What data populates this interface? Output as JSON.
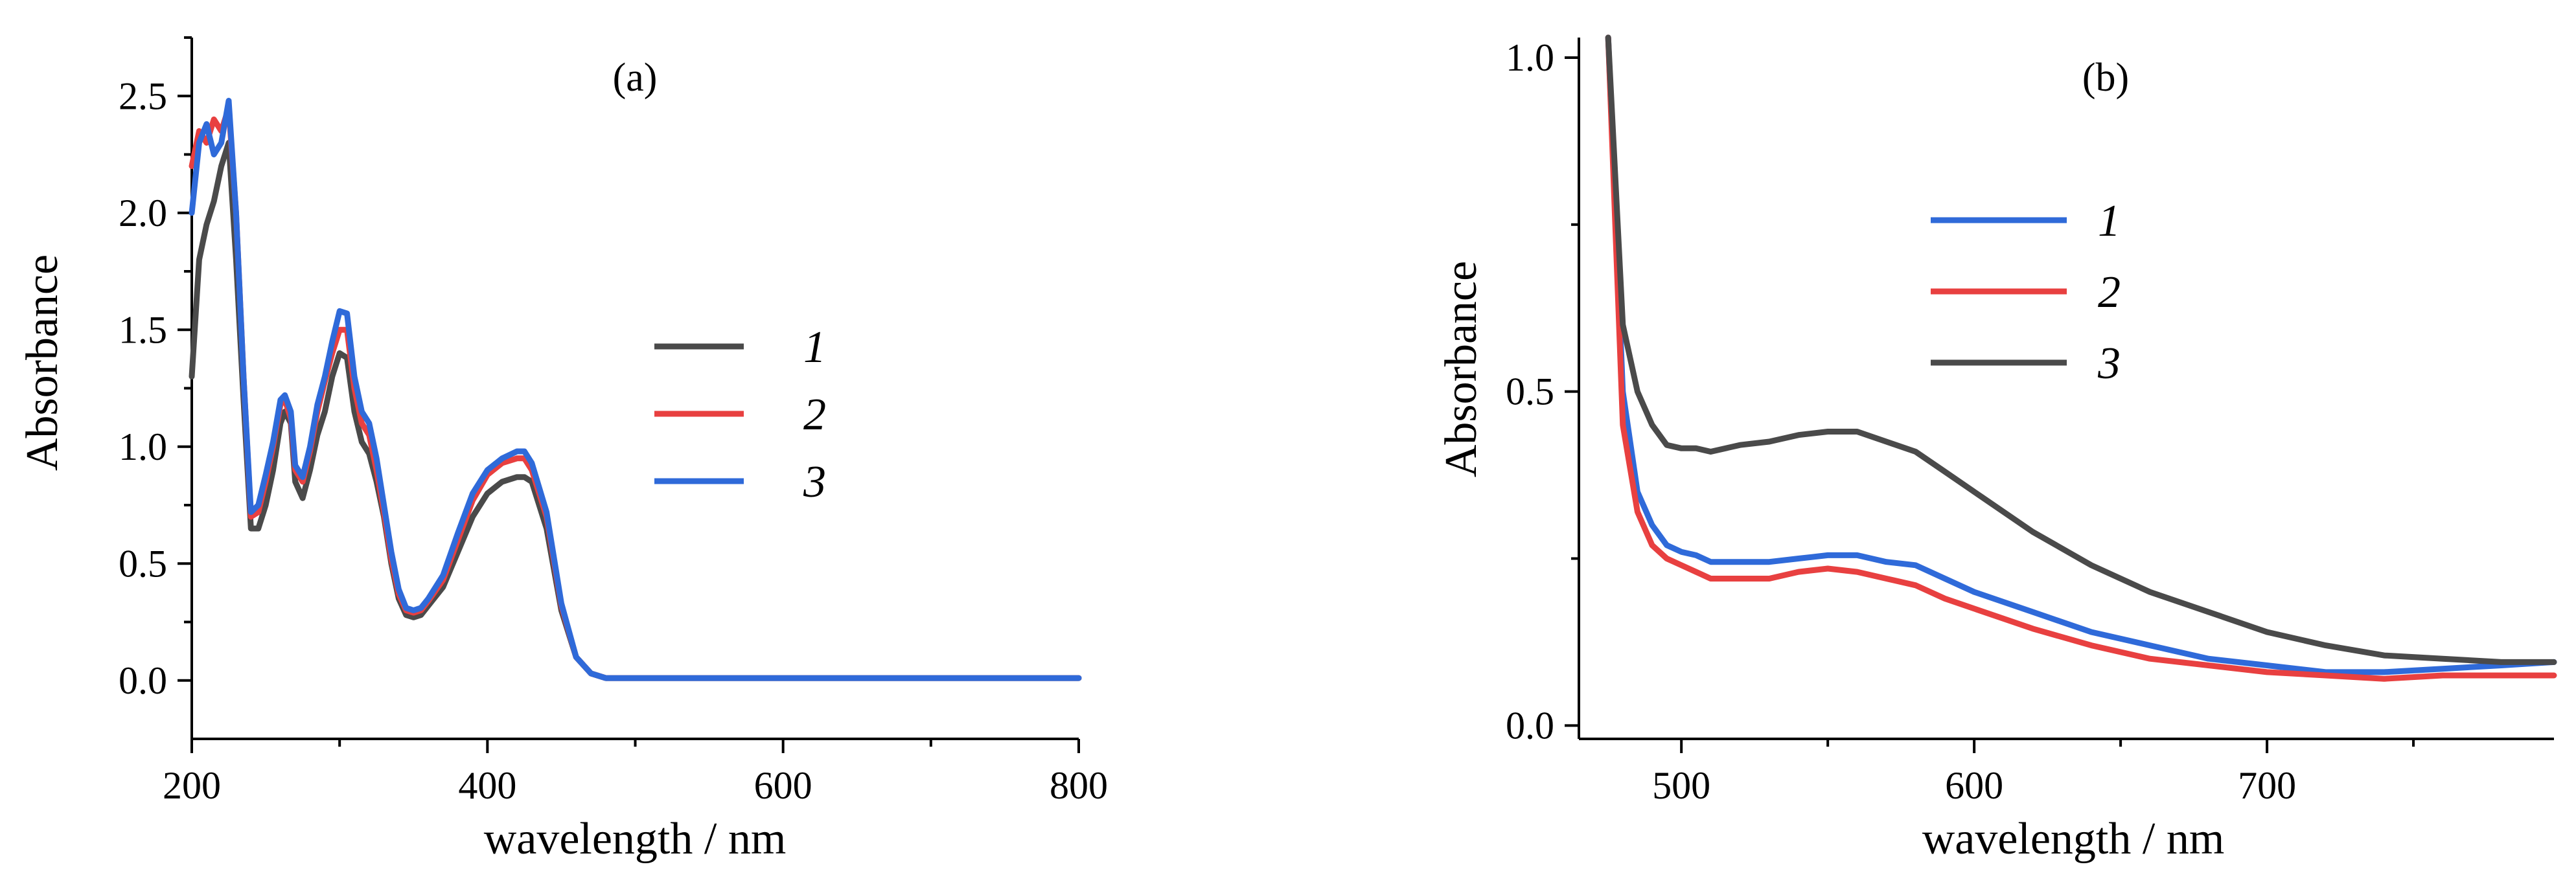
{
  "chart_data": [
    {
      "type": "line",
      "panel_label": "(a)",
      "xlabel": "wavelength / nm",
      "ylabel": "Absorbance",
      "xlim": [
        200,
        800
      ],
      "ylim": [
        -0.25,
        2.75
      ],
      "xticks": [
        200,
        400,
        600,
        800
      ],
      "xtick_labels": [
        "200",
        "400",
        "600",
        "800"
      ],
      "yticks": [
        0.0,
        0.5,
        1.0,
        1.5,
        2.0,
        2.5
      ],
      "ytick_labels": [
        "0.0",
        "0.5",
        "1.0",
        "1.5",
        "2.0",
        "2.5"
      ],
      "legend": [
        "1",
        "2",
        "3"
      ],
      "legend_position": "center-right",
      "series": [
        {
          "name": "1",
          "color": "#4a4a4a",
          "x": [
            200,
            205,
            210,
            215,
            220,
            225,
            230,
            235,
            240,
            245,
            250,
            255,
            260,
            263,
            267,
            270,
            275,
            280,
            285,
            290,
            295,
            300,
            305,
            310,
            315,
            320,
            325,
            330,
            335,
            340,
            345,
            350,
            355,
            360,
            370,
            380,
            390,
            400,
            410,
            420,
            425,
            430,
            440,
            450,
            460,
            470,
            480,
            490,
            500,
            550,
            600,
            650,
            700,
            750,
            800
          ],
          "y": [
            1.3,
            1.8,
            1.95,
            2.05,
            2.2,
            2.3,
            1.8,
            1.2,
            0.65,
            0.65,
            0.75,
            0.9,
            1.1,
            1.15,
            1.1,
            0.85,
            0.78,
            0.9,
            1.05,
            1.15,
            1.3,
            1.4,
            1.38,
            1.15,
            1.02,
            0.97,
            0.85,
            0.7,
            0.5,
            0.35,
            0.28,
            0.27,
            0.28,
            0.32,
            0.4,
            0.55,
            0.7,
            0.8,
            0.85,
            0.87,
            0.87,
            0.85,
            0.65,
            0.3,
            0.1,
            0.03,
            0.01,
            0.01,
            0.01,
            0.01,
            0.01,
            0.01,
            0.01,
            0.01,
            0.01
          ]
        },
        {
          "name": "2",
          "color": "#e84040",
          "x": [
            200,
            205,
            210,
            215,
            220,
            225,
            230,
            235,
            240,
            245,
            250,
            255,
            260,
            263,
            267,
            270,
            275,
            280,
            285,
            290,
            295,
            300,
            305,
            310,
            315,
            320,
            325,
            330,
            335,
            340,
            345,
            350,
            355,
            360,
            370,
            380,
            390,
            400,
            410,
            420,
            425,
            430,
            440,
            450,
            460,
            470,
            480,
            490,
            500,
            550,
            600,
            650,
            700,
            750,
            800
          ],
          "y": [
            2.2,
            2.35,
            2.3,
            2.4,
            2.35,
            2.45,
            2.0,
            1.3,
            0.7,
            0.72,
            0.85,
            1.0,
            1.18,
            1.2,
            1.12,
            0.9,
            0.85,
            0.98,
            1.15,
            1.28,
            1.4,
            1.5,
            1.5,
            1.25,
            1.1,
            1.05,
            0.9,
            0.72,
            0.52,
            0.37,
            0.3,
            0.29,
            0.3,
            0.34,
            0.43,
            0.6,
            0.77,
            0.88,
            0.93,
            0.95,
            0.95,
            0.9,
            0.7,
            0.32,
            0.1,
            0.03,
            0.01,
            0.01,
            0.01,
            0.01,
            0.01,
            0.01,
            0.01,
            0.01,
            0.01
          ]
        },
        {
          "name": "3",
          "color": "#2f6ad9",
          "x": [
            200,
            205,
            210,
            215,
            220,
            225,
            230,
            235,
            240,
            245,
            250,
            255,
            260,
            263,
            267,
            270,
            275,
            280,
            285,
            290,
            295,
            300,
            305,
            310,
            315,
            320,
            325,
            330,
            335,
            340,
            345,
            350,
            355,
            360,
            370,
            380,
            390,
            400,
            410,
            420,
            425,
            430,
            440,
            450,
            460,
            470,
            480,
            490,
            500,
            550,
            600,
            650,
            700,
            750,
            800
          ],
          "y": [
            2.0,
            2.3,
            2.38,
            2.25,
            2.3,
            2.48,
            2.0,
            1.3,
            0.72,
            0.75,
            0.88,
            1.02,
            1.2,
            1.22,
            1.15,
            0.92,
            0.87,
            1.0,
            1.18,
            1.3,
            1.45,
            1.58,
            1.57,
            1.3,
            1.15,
            1.1,
            0.95,
            0.75,
            0.55,
            0.39,
            0.31,
            0.3,
            0.31,
            0.35,
            0.45,
            0.63,
            0.8,
            0.9,
            0.95,
            0.98,
            0.98,
            0.93,
            0.72,
            0.33,
            0.1,
            0.03,
            0.01,
            0.01,
            0.01,
            0.01,
            0.01,
            0.01,
            0.01,
            0.01,
            0.01
          ]
        }
      ]
    },
    {
      "type": "line",
      "panel_label": "(b)",
      "xlabel": "wavelength / nm",
      "ylabel": "Absorbance",
      "xlim": [
        465,
        798
      ],
      "ylim": [
        -0.02,
        1.03
      ],
      "xticks": [
        500,
        600,
        700
      ],
      "xtick_labels": [
        "500",
        "600",
        "700"
      ],
      "yticks": [
        0.0,
        0.5,
        1.0
      ],
      "ytick_labels": [
        "0.0",
        "0.5",
        "1.0"
      ],
      "legend": [
        "1",
        "2",
        "3"
      ],
      "legend_position": "top-center",
      "series": [
        {
          "name": "1",
          "color": "#2f6ad9",
          "x": [
            475,
            480,
            485,
            490,
            495,
            500,
            505,
            510,
            520,
            530,
            540,
            550,
            560,
            570,
            580,
            590,
            600,
            620,
            640,
            660,
            680,
            700,
            720,
            740,
            760,
            780,
            798
          ],
          "y": [
            1.03,
            0.5,
            0.35,
            0.3,
            0.27,
            0.26,
            0.255,
            0.245,
            0.245,
            0.245,
            0.25,
            0.255,
            0.255,
            0.245,
            0.24,
            0.22,
            0.2,
            0.17,
            0.14,
            0.12,
            0.1,
            0.09,
            0.08,
            0.08,
            0.085,
            0.09,
            0.095
          ]
        },
        {
          "name": "2",
          "color": "#e84040",
          "x": [
            475,
            480,
            485,
            490,
            495,
            500,
            505,
            510,
            520,
            530,
            540,
            550,
            560,
            570,
            580,
            590,
            600,
            620,
            640,
            660,
            680,
            700,
            720,
            740,
            760,
            780,
            798
          ],
          "y": [
            1.03,
            0.45,
            0.32,
            0.27,
            0.25,
            0.24,
            0.23,
            0.22,
            0.22,
            0.22,
            0.23,
            0.235,
            0.23,
            0.22,
            0.21,
            0.19,
            0.175,
            0.145,
            0.12,
            0.1,
            0.09,
            0.08,
            0.075,
            0.07,
            0.075,
            0.075,
            0.075
          ]
        },
        {
          "name": "3",
          "color": "#4a4a4a",
          "x": [
            475,
            480,
            485,
            490,
            495,
            500,
            505,
            510,
            520,
            530,
            540,
            550,
            560,
            570,
            580,
            590,
            600,
            620,
            640,
            660,
            680,
            700,
            720,
            740,
            760,
            780,
            798
          ],
          "y": [
            1.03,
            0.6,
            0.5,
            0.45,
            0.42,
            0.415,
            0.415,
            0.41,
            0.42,
            0.425,
            0.435,
            0.44,
            0.44,
            0.425,
            0.41,
            0.38,
            0.35,
            0.29,
            0.24,
            0.2,
            0.17,
            0.14,
            0.12,
            0.105,
            0.1,
            0.095,
            0.095
          ]
        }
      ]
    }
  ]
}
